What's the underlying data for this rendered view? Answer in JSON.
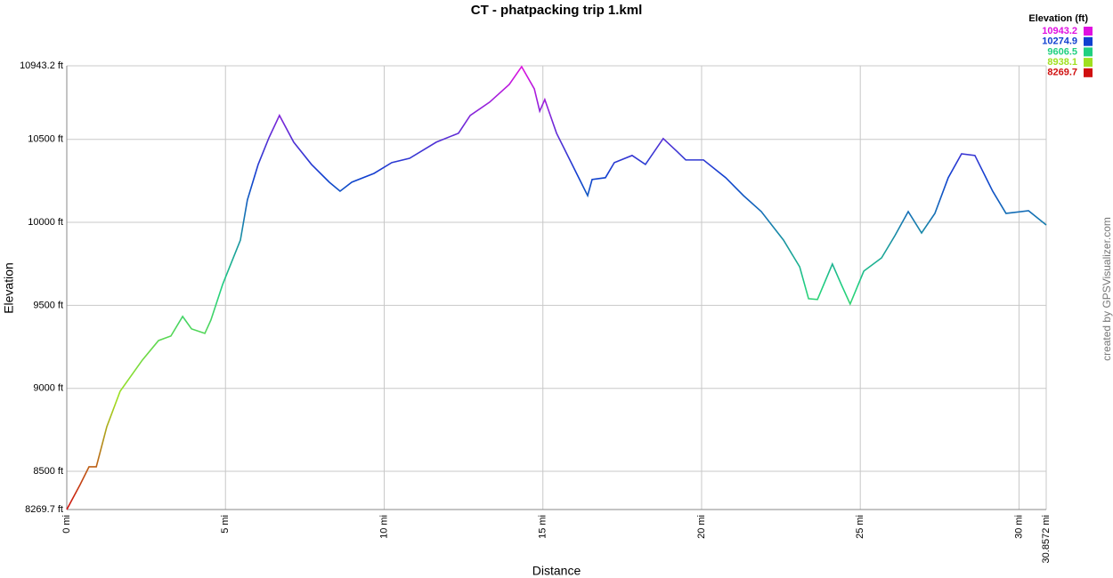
{
  "chart_data": {
    "type": "line",
    "title": "CT - phatpacking trip 1.kml",
    "x_label": "Distance",
    "y_label": "Elevation",
    "credit": "created by GPSVisualizer.com",
    "xlim": [
      0,
      30.8572
    ],
    "ylim": [
      8269.7,
      10943.2
    ],
    "xticks": [
      {
        "value": 0,
        "label": "0 mi"
      },
      {
        "value": 5,
        "label": "5 mi"
      },
      {
        "value": 10,
        "label": "10 mi"
      },
      {
        "value": 15,
        "label": "15 mi"
      },
      {
        "value": 20,
        "label": "20 mi"
      },
      {
        "value": 25,
        "label": "25 mi"
      },
      {
        "value": 30,
        "label": "30 mi"
      },
      {
        "value": 30.8572,
        "label": "30.8572 mi"
      }
    ],
    "yticks": [
      {
        "value": 8269.7,
        "label": "8269.7 ft"
      },
      {
        "value": 8500,
        "label": "8500 ft"
      },
      {
        "value": 9000,
        "label": "9000 ft"
      },
      {
        "value": 9500,
        "label": "9500 ft"
      },
      {
        "value": 10000,
        "label": "10000 ft"
      },
      {
        "value": 10500,
        "label": "10500 ft"
      },
      {
        "value": 10943.2,
        "label": "10943.2 ft"
      }
    ],
    "grid": true,
    "legend": {
      "title": "Elevation (ft)",
      "position": "top-right",
      "entries": [
        {
          "value": 10943.2,
          "color": "#e010e0"
        },
        {
          "value": 10274.9,
          "color": "#1040d0"
        },
        {
          "value": 9606.5,
          "color": "#20d080"
        },
        {
          "value": 8938.1,
          "color": "#a0e020"
        },
        {
          "value": 8269.7,
          "color": "#d01010"
        }
      ]
    },
    "x": [
      0,
      0.42,
      0.7,
      0.93,
      1.26,
      1.68,
      2.38,
      2.89,
      3.28,
      3.65,
      3.93,
      4.35,
      4.54,
      4.91,
      5.47,
      5.69,
      6.03,
      6.37,
      6.7,
      7.15,
      7.71,
      8.27,
      8.61,
      8.98,
      9.68,
      10.24,
      10.8,
      11.64,
      12.34,
      12.71,
      13.32,
      13.94,
      14.33,
      14.73,
      14.9,
      15.06,
      15.43,
      15.85,
      16.41,
      16.55,
      16.97,
      17.25,
      17.81,
      18.23,
      18.79,
      19.21,
      19.5,
      20.06,
      20.76,
      21.32,
      21.88,
      22.58,
      23.09,
      23.37,
      23.65,
      24.12,
      24.4,
      24.68,
      25.11,
      25.67,
      26.09,
      26.51,
      26.93,
      27.35,
      27.77,
      28.19,
      28.61,
      29.17,
      29.59,
      30.3,
      30.8572
    ],
    "values": [
      8270,
      8420,
      8527,
      8527,
      8768,
      8982,
      9170,
      9288,
      9315,
      9433,
      9358,
      9331,
      9411,
      9626,
      9893,
      10135,
      10349,
      10510,
      10644,
      10483,
      10349,
      10242,
      10188,
      10242,
      10295,
      10360,
      10386,
      10483,
      10537,
      10644,
      10724,
      10831,
      10938,
      10804,
      10670,
      10740,
      10537,
      10376,
      10161,
      10258,
      10269,
      10360,
      10403,
      10349,
      10505,
      10430,
      10376,
      10376,
      10269,
      10161,
      10065,
      9893,
      9732,
      9540,
      9535,
      9749,
      9626,
      9508,
      9706,
      9786,
      9920,
      10065,
      9936,
      10054,
      10269,
      10413,
      10403,
      10188,
      10054,
      10070,
      9984
    ]
  }
}
